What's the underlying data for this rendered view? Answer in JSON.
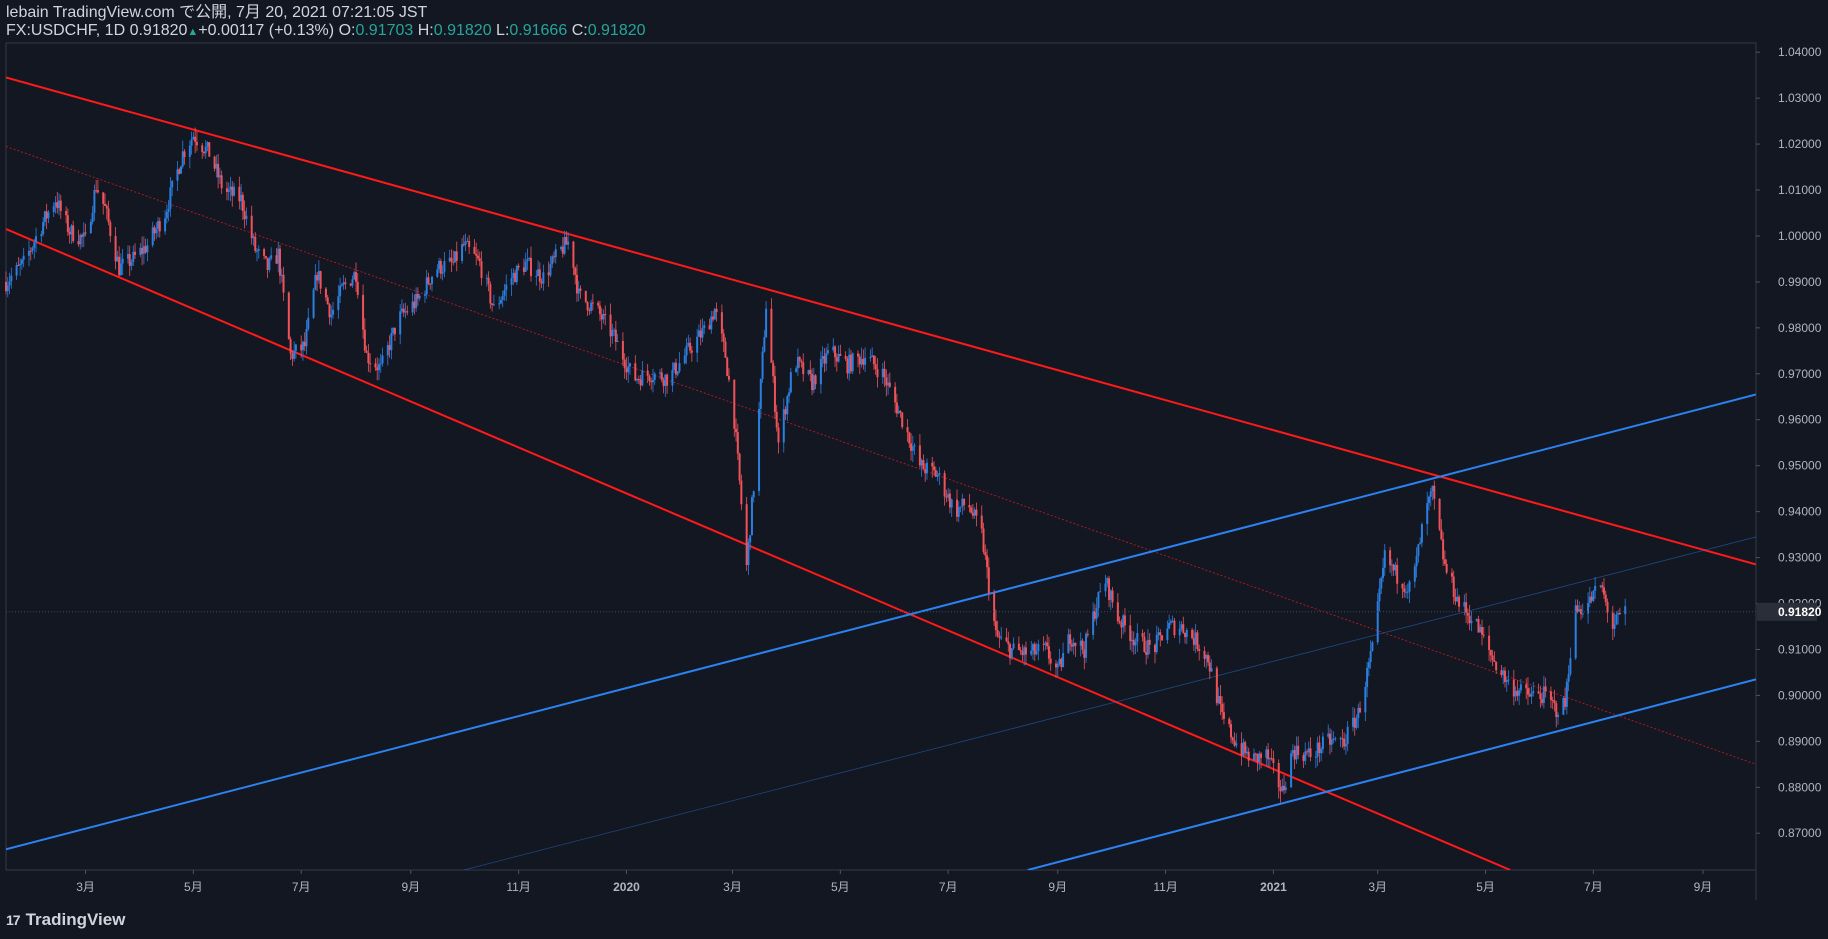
{
  "header": {
    "published": "lebain TradingView.com で公開, 7月 20, 2021 07:21:05 JST",
    "symbol_line": "FX:USDCHF, 1D 0.91820",
    "up_arrow": "▲",
    "change": "+0.00117 (+0.13%)",
    "o_label": "O:",
    "o_value": "0.91703",
    "h_label": "H:",
    "h_value": "0.91820",
    "l_label": "L:",
    "l_value": "0.91666",
    "c_label": "C:",
    "c_value": "0.91820"
  },
  "branding": {
    "mark": "17",
    "name": "TradingView"
  },
  "price_tag": "0.91820",
  "colors": {
    "background": "#131722",
    "up": "#2a7fe0",
    "down": "#f0525a",
    "red_line": "#ff1a1a",
    "blue_line": "#2b82f0",
    "text": "#d1d4dc"
  },
  "chart_data": {
    "type": "candlestick",
    "symbol": "FX:USDCHF",
    "timeframe": "1D",
    "x_range": [
      "2019-01-15",
      "2021-10-01"
    ],
    "y_range": [
      0.862,
      1.042
    ],
    "y_ticks": [
      "1.04000",
      "1.03000",
      "1.02000",
      "1.01000",
      "1.00000",
      "0.99000",
      "0.98000",
      "0.97000",
      "0.96000",
      "0.95000",
      "0.94000",
      "0.93000",
      "0.92000",
      "0.91000",
      "0.90000",
      "0.89000",
      "0.88000",
      "0.87000"
    ],
    "x_ticks": [
      {
        "label": "3月",
        "date": "2019-03-01"
      },
      {
        "label": "5月",
        "date": "2019-05-01"
      },
      {
        "label": "7月",
        "date": "2019-07-01"
      },
      {
        "label": "9月",
        "date": "2019-09-01"
      },
      {
        "label": "11月",
        "date": "2019-11-01"
      },
      {
        "label": "2020",
        "date": "2020-01-01"
      },
      {
        "label": "3月",
        "date": "2020-03-01"
      },
      {
        "label": "5月",
        "date": "2020-05-01"
      },
      {
        "label": "7月",
        "date": "2020-07-01"
      },
      {
        "label": "9月",
        "date": "2020-09-01"
      },
      {
        "label": "11月",
        "date": "2020-11-01"
      },
      {
        "label": "2021",
        "date": "2021-01-01"
      },
      {
        "label": "3月",
        "date": "2021-03-01"
      },
      {
        "label": "5月",
        "date": "2021-05-01"
      },
      {
        "label": "7月",
        "date": "2021-07-01"
      },
      {
        "label": "9月",
        "date": "2021-09-01"
      }
    ],
    "last_price": 0.9182,
    "price_path": [
      [
        "2019-01-15",
        0.99
      ],
      [
        "2019-01-25",
        0.994
      ],
      [
        "2019-02-05",
        1.003
      ],
      [
        "2019-02-12",
        1.008
      ],
      [
        "2019-02-20",
        1.001
      ],
      [
        "2019-03-01",
        0.999
      ],
      [
        "2019-03-07",
        1.011
      ],
      [
        "2019-03-12",
        1.006
      ],
      [
        "2019-03-20",
        0.993
      ],
      [
        "2019-03-28",
        0.995
      ],
      [
        "2019-04-05",
        0.998
      ],
      [
        "2019-04-15",
        1.005
      ],
      [
        "2019-04-25",
        1.018
      ],
      [
        "2019-05-01",
        1.022
      ],
      [
        "2019-05-10",
        1.018
      ],
      [
        "2019-05-18",
        1.01
      ],
      [
        "2019-05-28",
        1.008
      ],
      [
        "2019-06-05",
        0.997
      ],
      [
        "2019-06-12",
        0.993
      ],
      [
        "2019-06-18",
        0.996
      ],
      [
        "2019-06-25",
        0.974
      ],
      [
        "2019-07-03",
        0.976
      ],
      [
        "2019-07-10",
        0.992
      ],
      [
        "2019-07-18",
        0.983
      ],
      [
        "2019-07-25",
        0.989
      ],
      [
        "2019-08-01",
        0.992
      ],
      [
        "2019-08-07",
        0.974
      ],
      [
        "2019-08-15",
        0.971
      ],
      [
        "2019-08-25",
        0.982
      ],
      [
        "2019-09-05",
        0.986
      ],
      [
        "2019-09-15",
        0.993
      ],
      [
        "2019-09-25",
        0.994
      ],
      [
        "2019-10-01",
        0.998
      ],
      [
        "2019-10-10",
        0.994
      ],
      [
        "2019-10-18",
        0.984
      ],
      [
        "2019-10-28",
        0.991
      ],
      [
        "2019-11-05",
        0.994
      ],
      [
        "2019-11-15",
        0.991
      ],
      [
        "2019-11-25",
        0.997
      ],
      [
        "2019-11-30",
        0.999
      ],
      [
        "2019-12-05",
        0.987
      ],
      [
        "2019-12-15",
        0.984
      ],
      [
        "2019-12-25",
        0.978
      ],
      [
        "2020-01-05",
        0.969
      ],
      [
        "2020-01-15",
        0.97
      ],
      [
        "2020-01-25",
        0.969
      ],
      [
        "2020-02-05",
        0.975
      ],
      [
        "2020-02-15",
        0.98
      ],
      [
        "2020-02-20",
        0.984
      ],
      [
        "2020-02-26",
        0.974
      ],
      [
        "2020-03-02",
        0.96
      ],
      [
        "2020-03-09",
        0.928
      ],
      [
        "2020-03-14",
        0.95
      ],
      [
        "2020-03-20",
        0.985
      ],
      [
        "2020-03-27",
        0.955
      ],
      [
        "2020-04-05",
        0.973
      ],
      [
        "2020-04-15",
        0.968
      ],
      [
        "2020-04-25",
        0.975
      ],
      [
        "2020-05-05",
        0.972
      ],
      [
        "2020-05-15",
        0.974
      ],
      [
        "2020-05-25",
        0.97
      ],
      [
        "2020-06-05",
        0.96
      ],
      [
        "2020-06-15",
        0.95
      ],
      [
        "2020-06-25",
        0.948
      ],
      [
        "2020-07-05",
        0.94
      ],
      [
        "2020-07-12",
        0.942
      ],
      [
        "2020-07-20",
        0.935
      ],
      [
        "2020-07-28",
        0.913
      ],
      [
        "2020-08-05",
        0.91
      ],
      [
        "2020-08-15",
        0.909
      ],
      [
        "2020-08-25",
        0.91
      ],
      [
        "2020-09-01",
        0.905
      ],
      [
        "2020-09-08",
        0.913
      ],
      [
        "2020-09-16",
        0.91
      ],
      [
        "2020-09-23",
        0.92
      ],
      [
        "2020-09-28",
        0.925
      ],
      [
        "2020-10-05",
        0.917
      ],
      [
        "2020-10-15",
        0.912
      ],
      [
        "2020-10-25",
        0.91
      ],
      [
        "2020-11-02",
        0.915
      ],
      [
        "2020-11-10",
        0.915
      ],
      [
        "2020-11-18",
        0.912
      ],
      [
        "2020-11-25",
        0.908
      ],
      [
        "2020-12-03",
        0.895
      ],
      [
        "2020-12-12",
        0.889
      ],
      [
        "2020-12-20",
        0.886
      ],
      [
        "2020-12-28",
        0.887
      ],
      [
        "2021-01-06",
        0.879
      ],
      [
        "2021-01-12",
        0.888
      ],
      [
        "2021-01-22",
        0.887
      ],
      [
        "2021-02-01",
        0.89
      ],
      [
        "2021-02-10",
        0.89
      ],
      [
        "2021-02-18",
        0.896
      ],
      [
        "2021-02-26",
        0.91
      ],
      [
        "2021-03-05",
        0.93
      ],
      [
        "2021-03-12",
        0.926
      ],
      [
        "2021-03-20",
        0.923
      ],
      [
        "2021-03-28",
        0.94
      ],
      [
        "2021-04-01",
        0.944
      ],
      [
        "2021-04-08",
        0.928
      ],
      [
        "2021-04-16",
        0.92
      ],
      [
        "2021-04-25",
        0.916
      ],
      [
        "2021-05-05",
        0.908
      ],
      [
        "2021-05-15",
        0.902
      ],
      [
        "2021-05-25",
        0.9
      ],
      [
        "2021-06-03",
        0.9
      ],
      [
        "2021-06-10",
        0.897
      ],
      [
        "2021-06-15",
        0.898
      ],
      [
        "2021-06-20",
        0.918
      ],
      [
        "2021-06-28",
        0.92
      ],
      [
        "2021-07-05",
        0.924
      ],
      [
        "2021-07-12",
        0.915
      ],
      [
        "2021-07-19",
        0.9182
      ]
    ],
    "trendlines": [
      {
        "color": "red",
        "width": "thick",
        "from": [
          "2019-01-15",
          1.0345
        ],
        "to": [
          "2021-10-01",
          0.9285
        ]
      },
      {
        "color": "red",
        "width": "thick",
        "from": [
          "2019-01-15",
          1.0015
        ],
        "to": [
          "2021-05-15",
          0.862
        ]
      },
      {
        "color": "red",
        "width": "dotted",
        "from": [
          "2019-01-15",
          1.0195
        ],
        "to": [
          "2021-10-01",
          0.885
        ]
      },
      {
        "color": "blue",
        "width": "thick",
        "from": [
          "2019-01-15",
          0.8665
        ],
        "to": [
          "2021-10-01",
          0.9655
        ]
      },
      {
        "color": "blue",
        "width": "thick",
        "from": [
          "2020-08-15",
          0.862
        ],
        "to": [
          "2021-10-01",
          0.9035
        ]
      },
      {
        "color": "blue",
        "width": "thin",
        "from": [
          "2019-10-01",
          0.862
        ],
        "to": [
          "2021-10-01",
          0.9345
        ]
      }
    ]
  }
}
